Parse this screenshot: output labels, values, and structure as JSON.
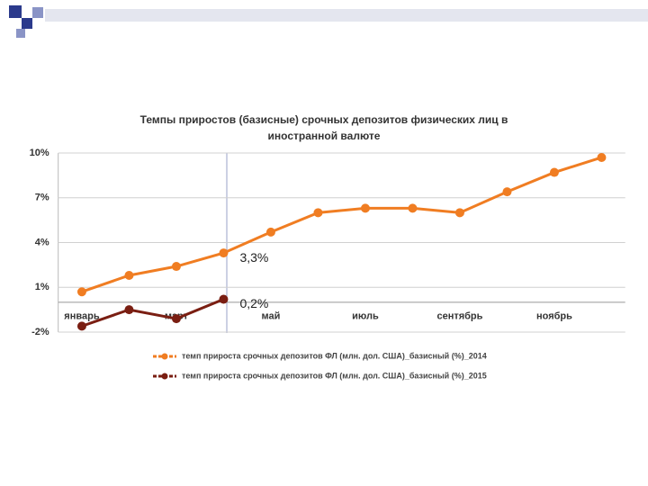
{
  "chart_data": {
    "type": "line",
    "title": "Темпы приростов (базисные) срочных депозитов физических лиц в иностранной валюте",
    "categories": [
      "январь",
      null,
      "март",
      null,
      "май",
      null,
      "июль",
      null,
      "сентябрь",
      null,
      "ноябрь",
      null
    ],
    "series": [
      {
        "name": "темп прироста срочных депозитов ФЛ (млн. дол. США)_базисный (%)_2014",
        "color": "#f07d22",
        "values": [
          0.7,
          1.8,
          2.4,
          3.3,
          4.7,
          6.0,
          6.3,
          6.3,
          6.0,
          7.4,
          8.7,
          9.7
        ],
        "value_labels": [
          null,
          null,
          null,
          "3,3%",
          null,
          null,
          null,
          null,
          null,
          null,
          null,
          null
        ]
      },
      {
        "name": "темп прироста срочных депозитов ФЛ (млн. дол. США)_базисный (%)_2015",
        "color": "#7a1e12",
        "values": [
          -1.6,
          -0.5,
          -1.1,
          0.2,
          null,
          null,
          null,
          null,
          null,
          null,
          null,
          null
        ],
        "value_labels": [
          null,
          null,
          null,
          "0,2%",
          null,
          null,
          null,
          null,
          null,
          null,
          null,
          null
        ]
      }
    ],
    "ylim": [
      -2,
      10
    ],
    "yticks": [
      {
        "value": -2,
        "label": "-2%"
      },
      {
        "value": 1,
        "label": "1%"
      },
      {
        "value": 4,
        "label": "4%"
      },
      {
        "value": 7,
        "label": "7%"
      },
      {
        "value": 10,
        "label": "10%"
      }
    ],
    "grid": true,
    "legend": "bottom"
  }
}
